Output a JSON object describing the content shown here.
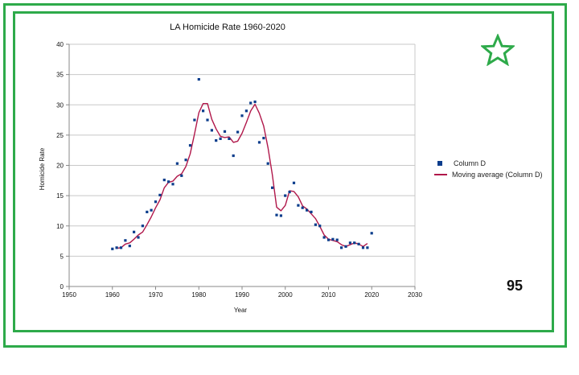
{
  "page_number": "95",
  "star_icon": "star-outline-icon",
  "colors": {
    "frame": "#2eaa4a",
    "points": "#0b3d8c",
    "moving_average": "#b0174a",
    "grid": "#c8c8c8"
  },
  "chart_data": {
    "type": "scatter",
    "title": "LA Homicide Rate  1960-2020",
    "xlabel": "Year",
    "ylabel": "Homicide Rate",
    "xlim": [
      1950,
      2030
    ],
    "ylim": [
      0,
      40
    ],
    "xticks": [
      1950,
      1960,
      1970,
      1980,
      1990,
      2000,
      2010,
      2020,
      2030
    ],
    "yticks": [
      0,
      5,
      10,
      15,
      20,
      25,
      30,
      35,
      40
    ],
    "grid": "horizontal",
    "legend_position": "right",
    "series": [
      {
        "name": "Column D",
        "kind": "points",
        "x": [
          1960,
          1961,
          1962,
          1963,
          1964,
          1965,
          1966,
          1967,
          1968,
          1969,
          1970,
          1971,
          1972,
          1973,
          1974,
          1975,
          1976,
          1977,
          1978,
          1979,
          1980,
          1981,
          1982,
          1983,
          1984,
          1985,
          1986,
          1987,
          1988,
          1989,
          1990,
          1991,
          1992,
          1993,
          1994,
          1995,
          1996,
          1997,
          1998,
          1999,
          2000,
          2001,
          2002,
          2003,
          2004,
          2005,
          2006,
          2007,
          2008,
          2009,
          2010,
          2011,
          2012,
          2013,
          2014,
          2015,
          2016,
          2017,
          2018,
          2019,
          2020
        ],
        "y": [
          6.2,
          6.4,
          6.4,
          7.6,
          6.7,
          9.0,
          8.1,
          10.0,
          12.3,
          12.6,
          14.0,
          15.1,
          17.6,
          17.3,
          16.9,
          20.3,
          18.3,
          20.9,
          23.3,
          27.5,
          34.2,
          29.0,
          27.5,
          25.8,
          24.1,
          24.4,
          25.6,
          24.4,
          21.6,
          25.5,
          28.2,
          29.0,
          30.3,
          30.5,
          23.8,
          24.5,
          20.3,
          16.3,
          11.8,
          11.7,
          15.0,
          15.6,
          17.1,
          13.4,
          13.0,
          12.6,
          12.3,
          10.2,
          10.0,
          8.1,
          7.7,
          7.8,
          7.7,
          6.4,
          6.6,
          7.2,
          7.2,
          7.0,
          6.4,
          6.4,
          8.8
        ]
      },
      {
        "name": "Moving average (Column D)",
        "kind": "line",
        "x": [
          1961,
          1962,
          1963,
          1964,
          1965,
          1966,
          1967,
          1968,
          1969,
          1970,
          1971,
          1972,
          1973,
          1974,
          1975,
          1976,
          1977,
          1978,
          1979,
          1980,
          1981,
          1982,
          1983,
          1984,
          1985,
          1986,
          1987,
          1988,
          1989,
          1990,
          1991,
          1992,
          1993,
          1994,
          1995,
          1996,
          1997,
          1998,
          1999,
          2000,
          2001,
          2002,
          2003,
          2004,
          2005,
          2006,
          2007,
          2008,
          2009,
          2010,
          2011,
          2012,
          2013,
          2014,
          2015,
          2016,
          2017,
          2018,
          2019
        ],
        "y": [
          6.3,
          6.4,
          7.0,
          7.2,
          7.8,
          8.5,
          9.0,
          10.2,
          11.5,
          13.0,
          14.3,
          16.3,
          17.2,
          17.4,
          18.2,
          18.6,
          19.8,
          21.9,
          25.2,
          28.7,
          30.2,
          30.2,
          27.6,
          26.0,
          24.8,
          24.6,
          24.7,
          23.8,
          24.0,
          25.3,
          27.1,
          29.0,
          30.1,
          28.6,
          26.5,
          22.9,
          18.5,
          13.1,
          12.5,
          13.4,
          15.8,
          15.7,
          14.8,
          13.3,
          12.8,
          12.0,
          11.2,
          9.9,
          8.5,
          7.8,
          7.6,
          7.4,
          6.9,
          6.6,
          6.9,
          7.2,
          7.0,
          6.6,
          7.1
        ]
      }
    ]
  }
}
